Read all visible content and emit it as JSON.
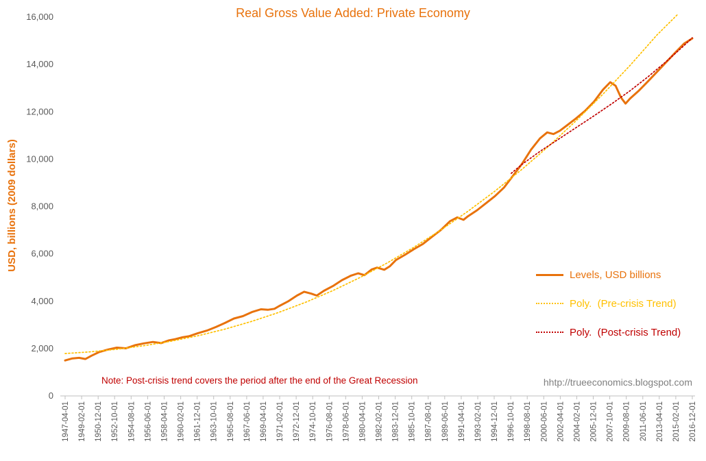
{
  "note": "Note: Post-crisis trend covers the period after the end of the Great Recession",
  "watermark": "hhtp://trueeconomics.blogspot.com",
  "colors": {
    "orange": "#E8720C",
    "gold": "#FFC000",
    "dark_red": "#C00000",
    "tick_text": "#595959",
    "axis_line": "#BFBFBF",
    "watermark_gray": "#7F7F7F"
  },
  "chart_data": {
    "type": "line",
    "title": "Real Gross Value Added: Private Economy",
    "xlabel": "",
    "ylabel": "USD, billions (2009 dollars)",
    "ylim": [
      0,
      16000
    ],
    "ytick_step": 2000,
    "ytick_labels": [
      "0",
      "2,000",
      "4,000",
      "6,000",
      "8,000",
      "10,000",
      "12,000",
      "14,000",
      "16,000"
    ],
    "x_range_years": [
      1947.25,
      2016.917
    ],
    "xtick_labels": [
      "1947-04-01",
      "1949-02-01",
      "1950-12-01",
      "1952-10-01",
      "1954-08-01",
      "1956-06-01",
      "1958-04-01",
      "1960-02-01",
      "1961-12-01",
      "1963-10-01",
      "1965-08-01",
      "1967-06-01",
      "1969-04-01",
      "1971-02-01",
      "1972-12-01",
      "1974-10-01",
      "1976-08-01",
      "1978-06-01",
      "1980-04-01",
      "1982-02-01",
      "1983-12-01",
      "1985-10-01",
      "1987-08-01",
      "1989-06-01",
      "1991-04-01",
      "1993-02-01",
      "1994-12-01",
      "1996-10-01",
      "1998-08-01",
      "2000-06-01",
      "2002-04-01",
      "2004-02-01",
      "2005-12-01",
      "2007-10-01",
      "2009-08-01",
      "2011-06-01",
      "2013-04-01",
      "2015-02-01",
      "2016-12-01"
    ],
    "gridlines": false,
    "legend_position": "right-middle",
    "series": [
      {
        "key": "levels",
        "name": "Levels, USD billions",
        "style": "solid",
        "color_ref": "orange",
        "points": [
          [
            1947.25,
            1500
          ],
          [
            1948,
            1580
          ],
          [
            1948.8,
            1610
          ],
          [
            1949.5,
            1560
          ],
          [
            1950.2,
            1700
          ],
          [
            1951,
            1850
          ],
          [
            1952,
            1960
          ],
          [
            1953,
            2040
          ],
          [
            1954,
            2010
          ],
          [
            1955,
            2140
          ],
          [
            1956,
            2220
          ],
          [
            1957,
            2280
          ],
          [
            1957.9,
            2230
          ],
          [
            1958.8,
            2350
          ],
          [
            1959.5,
            2400
          ],
          [
            1960.3,
            2480
          ],
          [
            1961,
            2520
          ],
          [
            1962,
            2650
          ],
          [
            1963,
            2760
          ],
          [
            1964,
            2910
          ],
          [
            1965,
            3080
          ],
          [
            1966,
            3270
          ],
          [
            1967,
            3370
          ],
          [
            1968,
            3540
          ],
          [
            1969,
            3660
          ],
          [
            1969.8,
            3640
          ],
          [
            1970.5,
            3680
          ],
          [
            1971,
            3790
          ],
          [
            1972,
            3990
          ],
          [
            1973,
            4240
          ],
          [
            1973.8,
            4400
          ],
          [
            1974.6,
            4320
          ],
          [
            1975.2,
            4240
          ],
          [
            1976,
            4440
          ],
          [
            1977,
            4640
          ],
          [
            1978,
            4890
          ],
          [
            1979,
            5080
          ],
          [
            1979.8,
            5180
          ],
          [
            1980.5,
            5100
          ],
          [
            1981.3,
            5340
          ],
          [
            1981.9,
            5420
          ],
          [
            1982.7,
            5330
          ],
          [
            1983.3,
            5470
          ],
          [
            1984,
            5740
          ],
          [
            1985,
            5960
          ],
          [
            1986,
            6200
          ],
          [
            1987,
            6420
          ],
          [
            1988,
            6720
          ],
          [
            1989,
            7010
          ],
          [
            1990,
            7380
          ],
          [
            1990.8,
            7540
          ],
          [
            1991.5,
            7440
          ],
          [
            1992,
            7590
          ],
          [
            1993,
            7840
          ],
          [
            1994,
            8140
          ],
          [
            1995,
            8440
          ],
          [
            1996,
            8800
          ],
          [
            1997,
            9300
          ],
          [
            1998,
            9800
          ],
          [
            1999,
            10400
          ],
          [
            2000,
            10880
          ],
          [
            2000.8,
            11130
          ],
          [
            2001.5,
            11060
          ],
          [
            2002.2,
            11200
          ],
          [
            2003,
            11430
          ],
          [
            2004,
            11720
          ],
          [
            2005,
            12040
          ],
          [
            2006,
            12430
          ],
          [
            2007,
            12940
          ],
          [
            2007.8,
            13250
          ],
          [
            2008.4,
            13100
          ],
          [
            2009,
            12600
          ],
          [
            2009.5,
            12350
          ],
          [
            2010,
            12560
          ],
          [
            2011,
            12900
          ],
          [
            2012,
            13290
          ],
          [
            2013,
            13690
          ],
          [
            2014,
            14090
          ],
          [
            2015,
            14490
          ],
          [
            2016,
            14880
          ],
          [
            2016.92,
            15100
          ]
        ]
      },
      {
        "key": "pre-crisis-trend",
        "name": "Poly.  (Pre-crisis Trend)",
        "style": "dotted",
        "color_ref": "gold",
        "points": [
          [
            1947.25,
            1790
          ],
          [
            1950,
            1860
          ],
          [
            1953,
            1970
          ],
          [
            1956,
            2120
          ],
          [
            1959,
            2310
          ],
          [
            1962,
            2540
          ],
          [
            1965,
            2820
          ],
          [
            1968,
            3150
          ],
          [
            1971,
            3530
          ],
          [
            1974,
            3960
          ],
          [
            1977,
            4450
          ],
          [
            1980,
            5000
          ],
          [
            1983,
            5610
          ],
          [
            1986,
            6280
          ],
          [
            1989,
            7010
          ],
          [
            1992,
            7800
          ],
          [
            1995,
            8650
          ],
          [
            1998,
            9570
          ],
          [
            2001,
            10560
          ],
          [
            2004,
            11620
          ],
          [
            2007,
            12750
          ],
          [
            2010,
            13960
          ],
          [
            2013,
            15250
          ],
          [
            2015.3,
            16120
          ]
        ]
      },
      {
        "key": "post-crisis-trend",
        "name": "Poly.  (Post-crisis Trend)",
        "style": "dotted",
        "color_ref": "dark_red",
        "points": [
          [
            1996.8,
            9400
          ],
          [
            1998,
            9780
          ],
          [
            2000,
            10330
          ],
          [
            2002,
            10830
          ],
          [
            2004,
            11330
          ],
          [
            2006,
            11830
          ],
          [
            2008,
            12350
          ],
          [
            2010,
            12890
          ],
          [
            2012,
            13480
          ],
          [
            2014,
            14120
          ],
          [
            2016,
            14800
          ],
          [
            2016.92,
            15130
          ]
        ]
      }
    ]
  }
}
